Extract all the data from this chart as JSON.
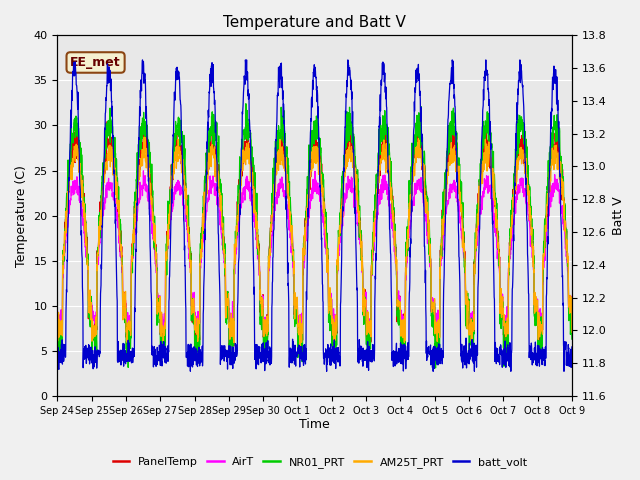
{
  "title": "Temperature and Batt V",
  "xlabel": "Time",
  "ylabel_left": "Temperature (C)",
  "ylabel_right": "Batt V",
  "annotation": "EE_met",
  "ylim_left": [
    0,
    40
  ],
  "ylim_right": [
    11.6,
    13.8
  ],
  "x_tick_labels": [
    "Sep 24",
    "Sep 25",
    "Sep 26",
    "Sep 27",
    "Sep 28",
    "Sep 29",
    "Sep 30",
    "Oct 1",
    "Oct 2",
    "Oct 3",
    "Oct 4",
    "Oct 5",
    "Oct 6",
    "Oct 7",
    "Oct 8",
    "Oct 9"
  ],
  "bg_color": "#e8e8e8",
  "fig_color": "#f0f0f0",
  "colors": {
    "PanelTemp": "#dd0000",
    "AirT": "#ff00ff",
    "NR01_PRT": "#00cc00",
    "AM25T_PRT": "#ffaa00",
    "batt_volt": "#0000cc"
  },
  "legend_entries": [
    "PanelTemp",
    "AirT",
    "NR01_PRT",
    "AM25T_PRT",
    "batt_volt"
  ],
  "yticks_left": [
    0,
    5,
    10,
    15,
    20,
    25,
    30,
    35,
    40
  ],
  "yticks_right": [
    11.6,
    11.8,
    12.0,
    12.2,
    12.4,
    12.6,
    12.8,
    13.0,
    13.2,
    13.4,
    13.6,
    13.8
  ]
}
